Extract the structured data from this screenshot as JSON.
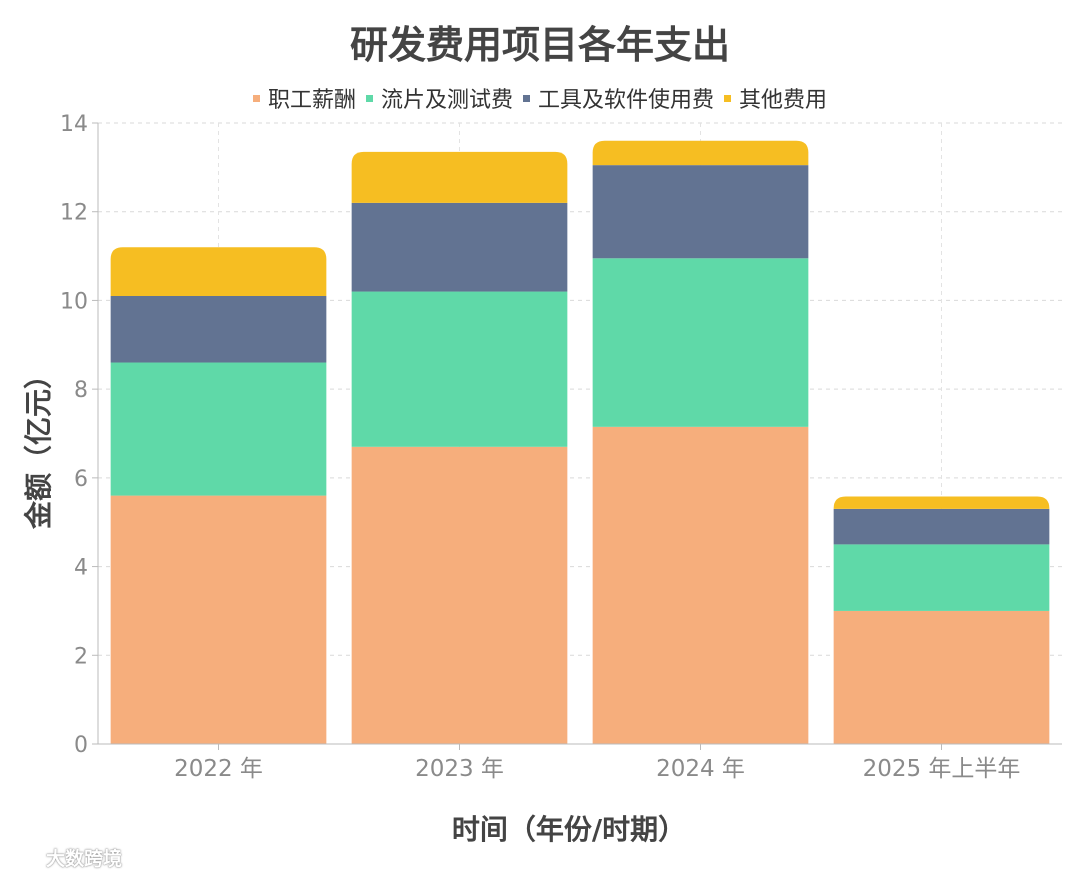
{
  "chart_data": {
    "type": "bar",
    "stacked": true,
    "title": "研发费用项目各年支出",
    "xlabel": "时间（年份/时期）",
    "ylabel": "金额（亿元）",
    "categories": [
      "2022 年",
      "2023 年",
      "2024 年",
      "2025 年上半年"
    ],
    "ylim": [
      0,
      14
    ],
    "yticks": [
      0,
      2,
      4,
      6,
      8,
      10,
      12,
      14
    ],
    "grid": true,
    "legend_position": "top-center",
    "series": [
      {
        "name": "职工薪酬",
        "color": "#F6AE7C",
        "values": [
          5.6,
          6.7,
          7.15,
          3.0
        ]
      },
      {
        "name": "流片及测试费",
        "color": "#5FD9A8",
        "values": [
          3.0,
          3.5,
          3.8,
          1.5
        ]
      },
      {
        "name": "工具及软件使用费",
        "color": "#627392",
        "values": [
          1.5,
          2.0,
          2.1,
          0.8
        ]
      },
      {
        "name": "其他费用",
        "color": "#F6BE22",
        "values": [
          1.1,
          1.15,
          0.55,
          0.28
        ]
      }
    ]
  },
  "watermark": {
    "text": "大数跨境",
    "icon": "logo-icon"
  }
}
